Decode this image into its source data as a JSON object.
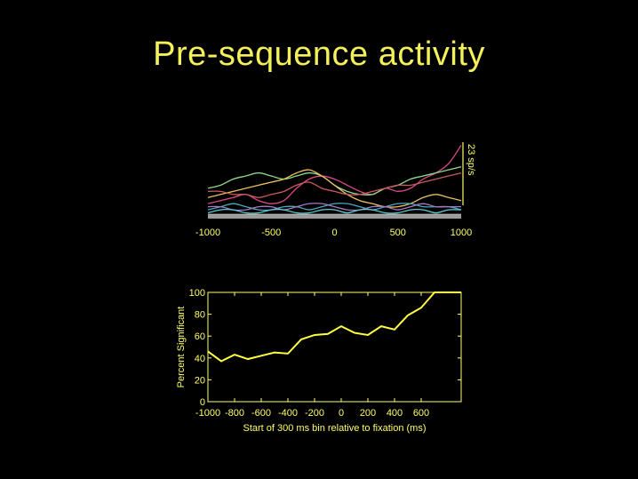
{
  "slide": {
    "title": "Pre-sequence activity"
  },
  "chart_data": [
    {
      "type": "line",
      "title": "",
      "xlabel": "",
      "ylabel": "",
      "scale_label": "23 sp/s",
      "xlim": [
        -1000,
        1000
      ],
      "x_ticks": [
        "-1000",
        "-500",
        "0",
        "500",
        "1000"
      ],
      "x": [
        -1000,
        -900,
        -800,
        -700,
        -600,
        -500,
        -400,
        -300,
        -200,
        -100,
        0,
        100,
        200,
        300,
        400,
        500,
        600,
        700,
        800,
        900,
        1000
      ],
      "series": [
        {
          "color": "#d94a8a",
          "values": [
            4,
            5,
            6,
            7,
            5,
            4,
            5,
            9,
            12,
            13,
            12,
            10,
            8,
            7,
            9,
            8,
            9,
            12,
            14,
            17,
            23
          ]
        },
        {
          "color": "#8fd88a",
          "values": [
            9,
            10,
            12,
            13,
            14,
            13,
            12,
            13,
            14,
            13,
            10,
            8,
            7,
            7,
            9,
            10,
            12,
            13,
            14,
            15,
            16
          ]
        },
        {
          "color": "#e8c060",
          "values": [
            6,
            7,
            8,
            9,
            10,
            11,
            12,
            14,
            15,
            13,
            10,
            7,
            5,
            4,
            3,
            3,
            4,
            6,
            7,
            6,
            5
          ]
        },
        {
          "color": "#c85a5a",
          "values": [
            8,
            8,
            7,
            7,
            6,
            7,
            8,
            10,
            11,
            9,
            8,
            7,
            7,
            8,
            9,
            10,
            10,
            11,
            12,
            13,
            14
          ]
        },
        {
          "color": "#4aa8c0",
          "values": [
            2,
            3,
            4,
            3,
            2,
            2,
            3,
            3,
            2,
            3,
            4,
            4,
            3,
            2,
            3,
            4,
            4,
            3,
            3,
            3,
            2
          ]
        },
        {
          "color": "#a878c8",
          "values": [
            3,
            3,
            2,
            2,
            3,
            3,
            2,
            3,
            4,
            4,
            3,
            2,
            2,
            3,
            3,
            2,
            3,
            4,
            3,
            3,
            3
          ]
        },
        {
          "color": "#5ad0d0",
          "values": [
            1,
            2,
            2,
            1,
            1,
            2,
            2,
            1,
            1,
            2,
            2,
            1,
            2,
            2,
            1,
            1,
            2,
            2,
            1,
            2,
            2
          ]
        },
        {
          "color": "#b0b0b0",
          "values": [
            0.5,
            0.5,
            0.5,
            0.5,
            0.5,
            0.5,
            0.5,
            0.5,
            0.5,
            0.5,
            0.5,
            0.5,
            0.5,
            0.5,
            0.5,
            0.5,
            0.5,
            0.5,
            0.5,
            0.5,
            0.5
          ]
        }
      ]
    },
    {
      "type": "line",
      "title": "",
      "xlabel": "Start of 300 ms bin relative to fixation (ms)",
      "ylabel": "Percent Significant",
      "xlim": [
        -1000,
        900
      ],
      "ylim": [
        0,
        100
      ],
      "x_ticks": [
        "-1000",
        "-800",
        "-600",
        "-400",
        "-200",
        "0",
        "200",
        "400",
        "600"
      ],
      "y_ticks": [
        "0",
        "20",
        "40",
        "60",
        "80",
        "100"
      ],
      "x": [
        -1000,
        -900,
        -800,
        -700,
        -600,
        -500,
        -400,
        -300,
        -200,
        -100,
        0,
        100,
        200,
        300,
        400,
        500,
        600,
        700,
        800,
        900
      ],
      "series": [
        {
          "color": "#ffff40",
          "values": [
            46,
            37,
            43,
            39,
            42,
            45,
            44,
            57,
            61,
            62,
            69,
            63,
            61,
            69,
            66,
            79,
            86,
            100,
            100,
            100
          ]
        }
      ]
    }
  ]
}
